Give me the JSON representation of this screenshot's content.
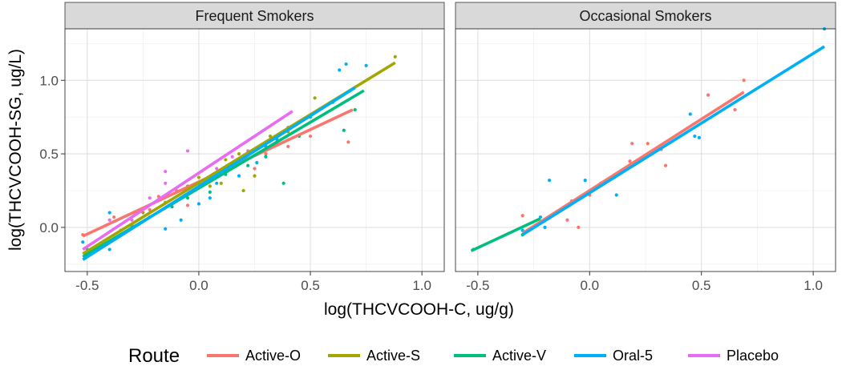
{
  "chart_data": {
    "type": "scatter",
    "xlabel": "log(THCVCOOH-C, ug/g)",
    "ylabel": "log(THCVCOOH-SG, ug/L)",
    "xlim": [
      -0.6,
      1.1
    ],
    "ylim": [
      -0.3,
      1.35
    ],
    "x_ticks": [
      -0.5,
      0.0,
      0.5,
      1.0
    ],
    "x_tick_labels": [
      "-0.5",
      "0.0",
      "0.5",
      "1.0"
    ],
    "y_ticks": [
      0.0,
      0.5,
      1.0
    ],
    "y_tick_labels": [
      "0.0",
      "0.5",
      "1.0"
    ],
    "grid": true,
    "legend": {
      "title": "Route",
      "placement": "bottom",
      "entries": [
        {
          "name": "Active-O",
          "color": "#F8766D"
        },
        {
          "name": "Active-S",
          "color": "#A3A500"
        },
        {
          "name": "Active-V",
          "color": "#00BF7D"
        },
        {
          "name": "Oral-5",
          "color": "#00B0F6"
        },
        {
          "name": "Placebo",
          "color": "#E76BF3"
        }
      ]
    },
    "panels": [
      {
        "title": "Frequent Smokers",
        "fits": [
          {
            "route": "Active-O",
            "x": [
              -0.52,
              0.69
            ],
            "y": [
              -0.06,
              0.8
            ]
          },
          {
            "route": "Active-S",
            "x": [
              -0.52,
              0.88
            ],
            "y": [
              -0.18,
              1.12
            ]
          },
          {
            "route": "Active-V",
            "x": [
              -0.52,
              0.74
            ],
            "y": [
              -0.2,
              0.93
            ]
          },
          {
            "route": "Oral-5",
            "x": [
              -0.52,
              0.7
            ],
            "y": [
              -0.22,
              0.95
            ]
          },
          {
            "route": "Placebo",
            "x": [
              -0.52,
              0.42
            ],
            "y": [
              -0.15,
              0.79
            ]
          }
        ],
        "points": [
          {
            "route": "Active-O",
            "x": -0.52,
            "y": -0.05
          },
          {
            "route": "Active-O",
            "x": -0.38,
            "y": 0.07
          },
          {
            "route": "Active-O",
            "x": -0.3,
            "y": 0.02
          },
          {
            "route": "Active-O",
            "x": -0.22,
            "y": 0.12
          },
          {
            "route": "Active-O",
            "x": -0.18,
            "y": 0.21
          },
          {
            "route": "Active-O",
            "x": -0.1,
            "y": 0.25
          },
          {
            "route": "Active-O",
            "x": -0.05,
            "y": 0.15
          },
          {
            "route": "Active-O",
            "x": 0.02,
            "y": 0.32
          },
          {
            "route": "Active-O",
            "x": 0.1,
            "y": 0.38
          },
          {
            "route": "Active-O",
            "x": 0.18,
            "y": 0.45
          },
          {
            "route": "Active-O",
            "x": 0.25,
            "y": 0.4
          },
          {
            "route": "Active-O",
            "x": 0.3,
            "y": 0.5
          },
          {
            "route": "Active-O",
            "x": 0.4,
            "y": 0.55
          },
          {
            "route": "Active-O",
            "x": 0.5,
            "y": 0.62
          },
          {
            "route": "Active-O",
            "x": 0.67,
            "y": 0.58
          },
          {
            "route": "Active-S",
            "x": -0.5,
            "y": -0.17
          },
          {
            "route": "Active-S",
            "x": -0.35,
            "y": -0.02
          },
          {
            "route": "Active-S",
            "x": -0.25,
            "y": 0.1
          },
          {
            "route": "Active-S",
            "x": -0.15,
            "y": 0.17
          },
          {
            "route": "Active-S",
            "x": -0.05,
            "y": 0.28
          },
          {
            "route": "Active-S",
            "x": 0.0,
            "y": 0.34
          },
          {
            "route": "Active-S",
            "x": 0.05,
            "y": 0.28
          },
          {
            "route": "Active-S",
            "x": 0.1,
            "y": 0.3
          },
          {
            "route": "Active-S",
            "x": 0.12,
            "y": 0.46
          },
          {
            "route": "Active-S",
            "x": 0.18,
            "y": 0.5
          },
          {
            "route": "Active-S",
            "x": 0.2,
            "y": 0.25
          },
          {
            "route": "Active-S",
            "x": 0.25,
            "y": 0.35
          },
          {
            "route": "Active-S",
            "x": 0.28,
            "y": 0.55
          },
          {
            "route": "Active-S",
            "x": 0.32,
            "y": 0.62
          },
          {
            "route": "Active-S",
            "x": 0.35,
            "y": 0.58
          },
          {
            "route": "Active-S",
            "x": 0.4,
            "y": 0.65
          },
          {
            "route": "Active-S",
            "x": 0.52,
            "y": 0.88
          },
          {
            "route": "Active-S",
            "x": 0.88,
            "y": 1.16
          },
          {
            "route": "Active-V",
            "x": -0.5,
            "y": -0.15
          },
          {
            "route": "Active-V",
            "x": -0.35,
            "y": -0.05
          },
          {
            "route": "Active-V",
            "x": -0.22,
            "y": 0.07
          },
          {
            "route": "Active-V",
            "x": -0.12,
            "y": 0.14
          },
          {
            "route": "Active-V",
            "x": -0.05,
            "y": 0.2
          },
          {
            "route": "Active-V",
            "x": 0.05,
            "y": 0.24
          },
          {
            "route": "Active-V",
            "x": 0.12,
            "y": 0.36
          },
          {
            "route": "Active-V",
            "x": 0.22,
            "y": 0.42
          },
          {
            "route": "Active-V",
            "x": 0.3,
            "y": 0.48
          },
          {
            "route": "Active-V",
            "x": 0.38,
            "y": 0.3
          },
          {
            "route": "Active-V",
            "x": 0.45,
            "y": 0.62
          },
          {
            "route": "Active-V",
            "x": 0.65,
            "y": 0.66
          },
          {
            "route": "Active-V",
            "x": 0.7,
            "y": 0.8
          },
          {
            "route": "Oral-5",
            "x": -0.52,
            "y": -0.1
          },
          {
            "route": "Oral-5",
            "x": -0.4,
            "y": -0.15
          },
          {
            "route": "Oral-5",
            "x": -0.4,
            "y": 0.1
          },
          {
            "route": "Oral-5",
            "x": -0.3,
            "y": 0.0
          },
          {
            "route": "Oral-5",
            "x": -0.15,
            "y": -0.01
          },
          {
            "route": "Oral-5",
            "x": -0.08,
            "y": 0.05
          },
          {
            "route": "Oral-5",
            "x": 0.0,
            "y": 0.16
          },
          {
            "route": "Oral-5",
            "x": 0.05,
            "y": 0.2
          },
          {
            "route": "Oral-5",
            "x": 0.08,
            "y": 0.3
          },
          {
            "route": "Oral-5",
            "x": 0.12,
            "y": 0.4
          },
          {
            "route": "Oral-5",
            "x": 0.18,
            "y": 0.35
          },
          {
            "route": "Oral-5",
            "x": 0.22,
            "y": 0.5
          },
          {
            "route": "Oral-5",
            "x": 0.26,
            "y": 0.44
          },
          {
            "route": "Oral-5",
            "x": 0.3,
            "y": 0.55
          },
          {
            "route": "Oral-5",
            "x": 0.35,
            "y": 0.6
          },
          {
            "route": "Oral-5",
            "x": 0.5,
            "y": 0.75
          },
          {
            "route": "Oral-5",
            "x": 0.6,
            "y": 0.85
          },
          {
            "route": "Oral-5",
            "x": 0.63,
            "y": 1.07
          },
          {
            "route": "Oral-5",
            "x": 0.66,
            "y": 1.11
          },
          {
            "route": "Oral-5",
            "x": 0.75,
            "y": 1.1
          },
          {
            "route": "Placebo",
            "x": -0.4,
            "y": 0.05
          },
          {
            "route": "Placebo",
            "x": -0.3,
            "y": 0.05
          },
          {
            "route": "Placebo",
            "x": -0.22,
            "y": 0.2
          },
          {
            "route": "Placebo",
            "x": -0.15,
            "y": 0.38
          },
          {
            "route": "Placebo",
            "x": -0.15,
            "y": 0.3
          },
          {
            "route": "Placebo",
            "x": -0.05,
            "y": 0.52
          },
          {
            "route": "Placebo",
            "x": 0.0,
            "y": 0.3
          },
          {
            "route": "Placebo",
            "x": 0.08,
            "y": 0.4
          },
          {
            "route": "Placebo",
            "x": 0.15,
            "y": 0.48
          },
          {
            "route": "Placebo",
            "x": 0.22,
            "y": 0.52
          },
          {
            "route": "Placebo",
            "x": 0.3,
            "y": 0.58
          },
          {
            "route": "Placebo",
            "x": 0.4,
            "y": 0.68
          }
        ]
      },
      {
        "title": "Occasional Smokers",
        "fits": [
          {
            "route": "Active-O",
            "x": -0.3,
            "y": -0.04,
            "x2": 0.69,
            "y2": 0.92
          },
          {
            "route": "Active-V",
            "x": -0.53,
            "y": -0.16,
            "x2": -0.22,
            "y2": 0.06
          },
          {
            "route": "Oral-5",
            "x": -0.3,
            "y": -0.05,
            "x2": 1.05,
            "y2": 1.23
          }
        ],
        "points": [
          {
            "route": "Active-O",
            "x": -0.3,
            "y": 0.08
          },
          {
            "route": "Active-O",
            "x": -0.1,
            "y": 0.05
          },
          {
            "route": "Active-O",
            "x": -0.08,
            "y": 0.18
          },
          {
            "route": "Active-O",
            "x": -0.05,
            "y": 0.0
          },
          {
            "route": "Active-O",
            "x": 0.0,
            "y": 0.22
          },
          {
            "route": "Active-O",
            "x": 0.12,
            "y": 0.35
          },
          {
            "route": "Active-O",
            "x": 0.18,
            "y": 0.45
          },
          {
            "route": "Active-O",
            "x": 0.19,
            "y": 0.57
          },
          {
            "route": "Active-O",
            "x": 0.26,
            "y": 0.57
          },
          {
            "route": "Active-O",
            "x": 0.32,
            "y": 0.53
          },
          {
            "route": "Active-O",
            "x": 0.34,
            "y": 0.42
          },
          {
            "route": "Active-O",
            "x": 0.53,
            "y": 0.9
          },
          {
            "route": "Active-O",
            "x": 0.65,
            "y": 0.8
          },
          {
            "route": "Active-O",
            "x": 0.69,
            "y": 1.0
          },
          {
            "route": "Active-V",
            "x": -0.52,
            "y": -0.15
          },
          {
            "route": "Active-V",
            "x": -0.3,
            "y": -0.05
          },
          {
            "route": "Oral-5",
            "x": -0.3,
            "y": -0.02
          },
          {
            "route": "Oral-5",
            "x": -0.22,
            "y": 0.07
          },
          {
            "route": "Oral-5",
            "x": -0.2,
            "y": 0.0
          },
          {
            "route": "Oral-5",
            "x": -0.18,
            "y": 0.32
          },
          {
            "route": "Oral-5",
            "x": -0.02,
            "y": 0.32
          },
          {
            "route": "Oral-5",
            "x": 0.05,
            "y": 0.3
          },
          {
            "route": "Oral-5",
            "x": 0.12,
            "y": 0.22
          },
          {
            "route": "Oral-5",
            "x": 0.45,
            "y": 0.77
          },
          {
            "route": "Oral-5",
            "x": 0.47,
            "y": 0.62
          },
          {
            "route": "Oral-5",
            "x": 0.49,
            "y": 0.61
          },
          {
            "route": "Oral-5",
            "x": 1.05,
            "y": 1.35
          }
        ]
      }
    ]
  }
}
